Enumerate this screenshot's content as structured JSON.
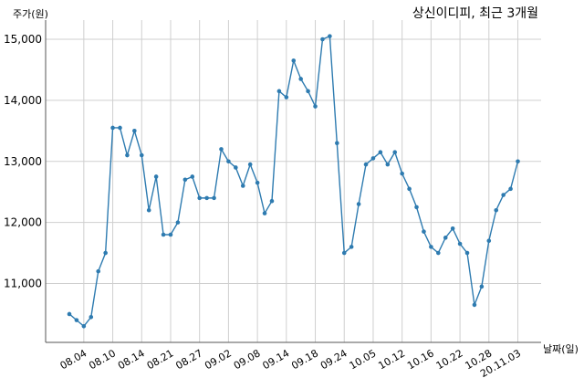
{
  "chart_data": {
    "type": "line",
    "title": "상신이디피, 최근 3개월",
    "xlabel": "날짜(일)",
    "ylabel": "주가(원)",
    "ylim": [
      10000,
      15300
    ],
    "yticks": [
      11000,
      12000,
      13000,
      14000,
      15000
    ],
    "ytick_labels": [
      "11,000",
      "12,000",
      "13,000",
      "14,000",
      "15,000"
    ],
    "xtick_labels": [
      "08.04",
      "08.10",
      "08.14",
      "08.21",
      "08.27",
      "09.02",
      "09.08",
      "09.14",
      "09.18",
      "09.24",
      "10.05",
      "10.12",
      "10.16",
      "10.22",
      "10.28",
      "20.11.03"
    ],
    "xtick_index": [
      2,
      6,
      10,
      14,
      18,
      22,
      26,
      30,
      34,
      38,
      42,
      46,
      50,
      54,
      58,
      62
    ],
    "grid": true,
    "line_color": "#2e7bb0",
    "series": [
      {
        "values": [
          10500,
          10400,
          10300,
          10450,
          11200,
          11500,
          13550,
          13550,
          13100,
          13500,
          13100,
          12200,
          12750,
          11800,
          11800,
          12000,
          12700,
          12750,
          12400,
          12400,
          12400,
          13200,
          13000,
          12900,
          12600,
          12950,
          12650,
          12150,
          12350,
          14150,
          14050,
          14650,
          14350,
          14150,
          13900,
          15000,
          15050,
          13300,
          11500,
          11600,
          12300,
          12950,
          13050,
          13150,
          12950,
          13150,
          12800,
          12550,
          12250,
          11850,
          11600,
          11500,
          11750,
          11900,
          11650,
          11500,
          10650,
          10950,
          11700,
          12200,
          12450,
          12550,
          13000
        ]
      }
    ]
  }
}
